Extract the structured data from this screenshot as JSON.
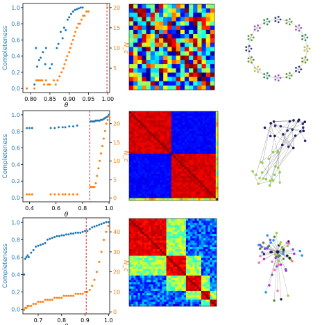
{
  "colors": {
    "left_axis": "#1f77b4",
    "right_axis": "#ff7f0e",
    "threshold": "#d62728",
    "net_ring": "#d6d6d6"
  },
  "chart_data": [
    {
      "type": "scatter",
      "xlabel": "θ",
      "ylabel": "Completeness",
      "y2label": "N_c",
      "xlim": [
        0.78,
        1.005
      ],
      "ylim": [
        -0.05,
        1.05
      ],
      "y2lim": [
        -1,
        21
      ],
      "xticks": [
        "0.80",
        "0.85",
        "0.90",
        "0.95",
        "1.00"
      ],
      "xtick_values": [
        0.8,
        0.85,
        0.9,
        0.95,
        1.0
      ],
      "yticks": [
        "0.0",
        "0.2",
        "0.4",
        "0.6",
        "0.8",
        "1.0"
      ],
      "ytick_values": [
        0,
        0.2,
        0.4,
        0.6,
        0.8,
        1.0
      ],
      "y2ticks": [
        "5",
        "10",
        "15",
        "20"
      ],
      "y2tick_values": [
        5,
        10,
        15,
        20
      ],
      "threshold": 0.998,
      "series": [
        {
          "axis": "left",
          "x": [
            0.79,
            0.81,
            0.814,
            0.817,
            0.822,
            0.826,
            0.832,
            0.838,
            0.84,
            0.85,
            0.855,
            0.868,
            0.872,
            0.878,
            0.883,
            0.887,
            0.891,
            0.896,
            0.9,
            0.905,
            0.91,
            0.915,
            0.92,
            0.925,
            0.93,
            0.935
          ],
          "y": [
            0.0,
            0.05,
            0.5,
            0.27,
            0.35,
            0.38,
            0.45,
            0.3,
            0.5,
            0.25,
            0.3,
            0.5,
            0.55,
            0.7,
            0.62,
            0.75,
            0.72,
            0.85,
            0.88,
            0.92,
            0.95,
            0.97,
            0.98,
            0.99,
            1.0,
            1.0
          ]
        },
        {
          "axis": "right",
          "x": [
            0.79,
            0.81,
            0.815,
            0.82,
            0.825,
            0.83,
            0.835,
            0.84,
            0.845,
            0.85,
            0.86,
            0.865,
            0.87,
            0.875,
            0.88,
            0.885,
            0.888,
            0.892,
            0.895,
            0.9,
            0.903,
            0.906,
            0.91,
            0.913,
            0.916,
            0.92,
            0.924,
            0.928,
            0.932,
            0.936,
            0.94,
            0.945,
            0.95,
            0.999
          ],
          "y": [
            0,
            0,
            2,
            2,
            2,
            2,
            1,
            2,
            1,
            1,
            2,
            1,
            2,
            3,
            4,
            5,
            6,
            7,
            8,
            9,
            10,
            11,
            12,
            13,
            14,
            15,
            16,
            16,
            17,
            18,
            18,
            19,
            19,
            20
          ]
        }
      ]
    },
    {
      "type": "scatter",
      "xlabel": "θ",
      "ylabel": "Completeness",
      "y2label": "N_c",
      "xlim": [
        0.35,
        1.005
      ],
      "ylim": [
        -0.05,
        1.05
      ],
      "y2lim": [
        -1,
        23.5
      ],
      "xticks": [
        "0.4",
        "0.6",
        "0.8",
        "1.0"
      ],
      "xtick_values": [
        0.4,
        0.6,
        0.8,
        1.0
      ],
      "yticks": [
        "0.0",
        "0.2",
        "0.4",
        "0.6",
        "0.8",
        "1.0"
      ],
      "ytick_values": [
        0,
        0.2,
        0.4,
        0.6,
        0.8,
        1.0
      ],
      "y2ticks": [
        "0",
        "5",
        "10",
        "15",
        "20"
      ],
      "y2tick_values": [
        0,
        5,
        10,
        15,
        20
      ],
      "threshold": 0.855,
      "series": [
        {
          "axis": "left",
          "x": [
            0.38,
            0.4,
            0.42,
            0.56,
            0.59,
            0.62,
            0.65,
            0.67,
            0.7,
            0.73,
            0.76,
            0.86,
            0.87,
            0.88,
            0.89,
            0.9,
            0.91,
            0.92,
            0.93,
            0.94,
            0.95,
            0.96,
            0.97,
            0.98,
            0.99,
            1.0
          ],
          "y": [
            0.84,
            0.84,
            0.84,
            0.84,
            0.84,
            0.85,
            0.85,
            0.85,
            0.86,
            0.86,
            0.87,
            0.92,
            0.92,
            0.92,
            0.92,
            0.93,
            0.93,
            0.93,
            0.93,
            0.94,
            0.94,
            0.95,
            0.96,
            0.97,
            0.98,
            1.0
          ]
        },
        {
          "axis": "right",
          "x": [
            0.38,
            0.4,
            0.42,
            0.56,
            0.59,
            0.62,
            0.65,
            0.67,
            0.7,
            0.73,
            0.76,
            0.86,
            0.87,
            0.88,
            0.89,
            0.9,
            0.91,
            0.92,
            0.93,
            0.94,
            0.95,
            0.96,
            0.97,
            0.98,
            0.99,
            1.0
          ],
          "y": [
            1,
            1,
            1,
            1,
            1,
            1,
            1,
            1,
            1,
            1,
            1,
            3,
            3,
            3,
            3,
            4,
            6,
            8,
            10,
            12,
            14,
            16,
            18,
            20,
            21,
            22
          ]
        }
      ]
    },
    {
      "type": "scatter",
      "xlabel": "θ",
      "ylabel": "Completeness",
      "y2label": "N_c",
      "xlim": [
        0.635,
        1.005
      ],
      "ylim": [
        -0.05,
        1.05
      ],
      "y2lim": [
        -1,
        47
      ],
      "xticks": [
        "0.7",
        "0.8",
        "0.9",
        "1.0"
      ],
      "xtick_values": [
        0.7,
        0.8,
        0.9,
        1.0
      ],
      "yticks": [
        "0.0",
        "0.2",
        "0.4",
        "0.6",
        "0.8",
        "1.0"
      ],
      "ytick_values": [
        0,
        0.2,
        0.4,
        0.6,
        0.8,
        1.0
      ],
      "y2ticks": [
        "0",
        "10",
        "20",
        "30",
        "40"
      ],
      "y2tick_values": [
        0,
        10,
        20,
        30,
        40
      ],
      "threshold": 0.905,
      "series": [
        {
          "axis": "left",
          "x": [
            0.64,
            0.645,
            0.65,
            0.655,
            0.66,
            0.67,
            0.68,
            0.69,
            0.7,
            0.71,
            0.72,
            0.73,
            0.74,
            0.75,
            0.76,
            0.77,
            0.78,
            0.79,
            0.8,
            0.81,
            0.82,
            0.83,
            0.84,
            0.85,
            0.86,
            0.87,
            0.88,
            0.89,
            0.9,
            0.91,
            0.92,
            0.93,
            0.94,
            0.95,
            0.96,
            0.97,
            0.98,
            0.99,
            1.0
          ],
          "y": [
            0.4,
            0.58,
            0.6,
            0.62,
            0.6,
            0.65,
            0.68,
            0.72,
            0.73,
            0.74,
            0.75,
            0.76,
            0.8,
            0.81,
            0.82,
            0.83,
            0.84,
            0.84,
            0.85,
            0.85,
            0.86,
            0.86,
            0.87,
            0.87,
            0.88,
            0.88,
            0.88,
            0.89,
            0.9,
            0.9,
            0.92,
            0.94,
            0.95,
            0.96,
            0.97,
            0.98,
            0.99,
            1.0,
            1.0
          ]
        },
        {
          "axis": "right",
          "x": [
            0.64,
            0.645,
            0.65,
            0.655,
            0.66,
            0.67,
            0.68,
            0.69,
            0.7,
            0.71,
            0.72,
            0.73,
            0.74,
            0.75,
            0.76,
            0.77,
            0.78,
            0.79,
            0.8,
            0.81,
            0.82,
            0.83,
            0.84,
            0.85,
            0.86,
            0.87,
            0.88,
            0.89,
            0.9,
            0.91,
            0.92,
            0.93,
            0.94,
            0.95,
            0.96,
            0.97,
            0.98,
            0.99,
            1.0
          ],
          "y": [
            1,
            2,
            2,
            3,
            3,
            3,
            4,
            4,
            5,
            5,
            5,
            6,
            6,
            6,
            6,
            7,
            7,
            7,
            7,
            8,
            8,
            8,
            8,
            8,
            9,
            9,
            9,
            9,
            10,
            10,
            11,
            13,
            16,
            20,
            25,
            30,
            36,
            40,
            43
          ]
        }
      ]
    },
    {
      "type": "heatmap",
      "palette": "jet",
      "pattern": "noise",
      "grid_size": 20,
      "colorbar": false
    },
    {
      "type": "heatmap",
      "palette": "jet",
      "pattern": "two-block",
      "blocks": [
        0.48,
        0.52
      ],
      "colorbar": false
    },
    {
      "type": "heatmap",
      "palette": "jet",
      "pattern": "multi-block",
      "blocks": [
        0.42,
        0.22,
        0.18,
        0.1,
        0.08
      ],
      "colorbar": false
    }
  ],
  "networks": [
    {
      "layout": "ring",
      "modules": 16,
      "node_colors": [
        "#3a3a8c",
        "#5a9e3a",
        "#9b59b6",
        "#2e8b57",
        "#c0c040",
        "#6b8e23"
      ]
    },
    {
      "layout": "tree",
      "node_colors": [
        "#1a1a5e",
        "#2a2a7a",
        "#8ccf4a",
        "#a0d060"
      ]
    },
    {
      "layout": "hub",
      "node_colors": [
        "#1a1a5e",
        "#4a8a3a",
        "#9acd32",
        "#6a5acd",
        "#9932cc",
        "#1e90ff",
        "#ff69b4"
      ]
    }
  ]
}
